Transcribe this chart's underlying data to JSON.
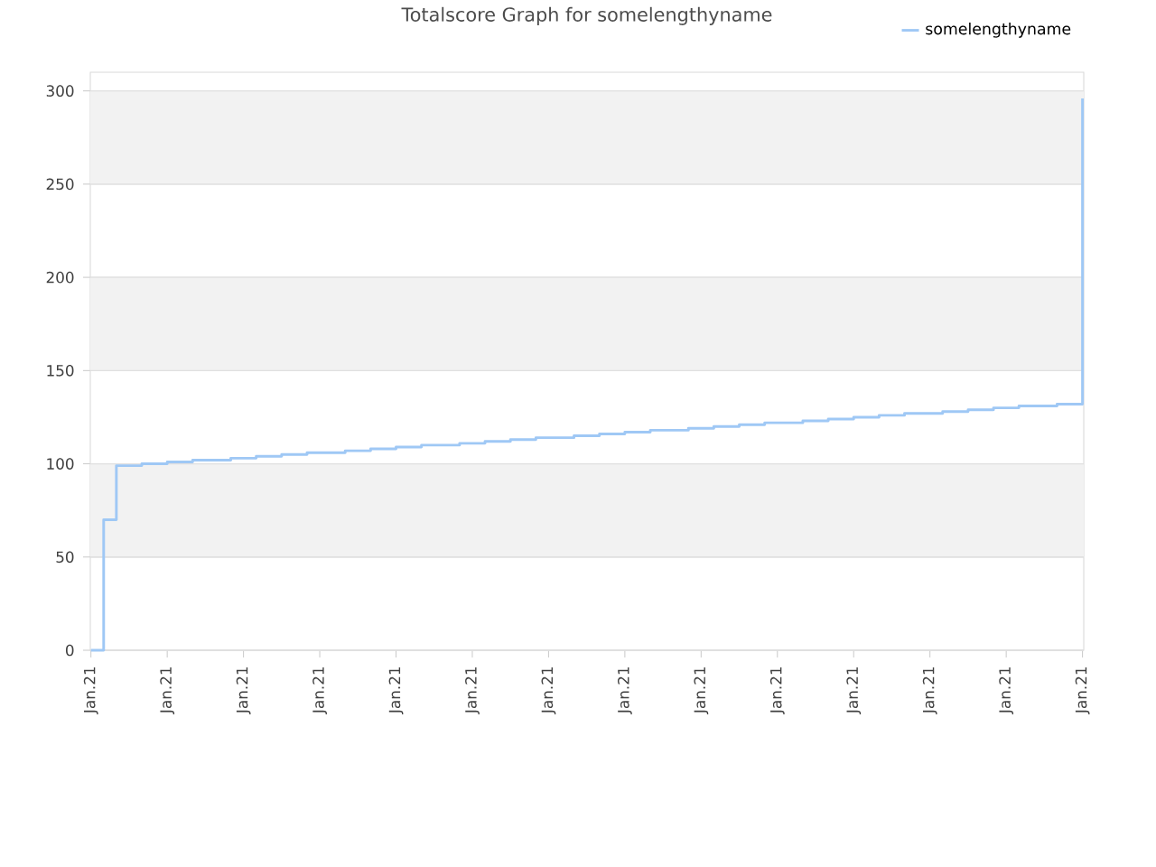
{
  "chart_data": {
    "type": "step",
    "title": "Totalscore Graph for somelengthyname",
    "categories": [
      "Jan.21",
      null,
      null,
      null,
      null,
      null,
      "Jan.21",
      null,
      null,
      null,
      null,
      null,
      "Jan.21",
      null,
      null,
      null,
      null,
      null,
      "Jan.21",
      null,
      null,
      null,
      null,
      null,
      "Jan.21",
      null,
      null,
      null,
      null,
      null,
      "Jan.21",
      null,
      null,
      null,
      null,
      null,
      "Jan.21",
      null,
      null,
      null,
      null,
      null,
      "Jan.21",
      null,
      null,
      null,
      null,
      null,
      "Jan.21",
      null,
      null,
      null,
      null,
      null,
      "Jan.21",
      null,
      null,
      null,
      null,
      null,
      "Jan.21",
      null,
      null,
      null,
      null,
      null,
      "Jan.21",
      null,
      null,
      null,
      null,
      null,
      "Jan.21",
      null,
      null,
      null,
      null,
      null,
      "Jan.21"
    ],
    "series": [
      {
        "name": "somelengthyname",
        "color": "#9fc8f5",
        "values": [
          0,
          70,
          99,
          99,
          100,
          100,
          101,
          101,
          102,
          102,
          102,
          103,
          103,
          104,
          104,
          105,
          105,
          106,
          106,
          106,
          107,
          107,
          108,
          108,
          109,
          109,
          110,
          110,
          110,
          111,
          111,
          112,
          112,
          113,
          113,
          114,
          114,
          114,
          115,
          115,
          116,
          116,
          117,
          117,
          118,
          118,
          118,
          119,
          119,
          120,
          120,
          121,
          121,
          122,
          122,
          122,
          123,
          123,
          124,
          124,
          125,
          125,
          126,
          126,
          127,
          127,
          127,
          128,
          128,
          129,
          129,
          130,
          130,
          131,
          131,
          131,
          132,
          132,
          296
        ]
      }
    ],
    "ylim": [
      0,
      310
    ],
    "yticks": [
      0,
      50,
      100,
      150,
      200,
      250,
      300
    ],
    "grid": "y",
    "legend": "top right",
    "marker": "none",
    "line_style": "solid"
  }
}
